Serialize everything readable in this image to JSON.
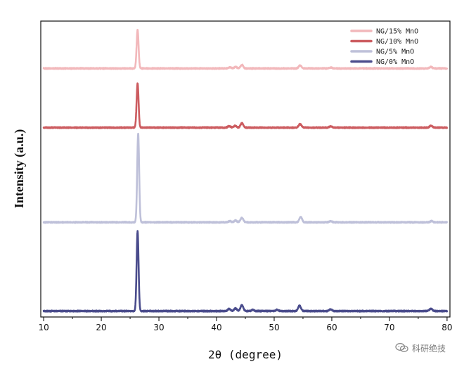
{
  "chart_data": {
    "type": "line",
    "title": "",
    "xlabel": "2θ (degree)",
    "ylabel": "Intensity (a.u.)",
    "xlim": [
      9.5,
      80.5
    ],
    "ylim": [
      0,
      1
    ],
    "xticks": [
      10,
      20,
      30,
      40,
      50,
      60,
      70,
      80
    ],
    "grid": false,
    "legend_position": "top-right",
    "series": [
      {
        "name": "NG/15% MnO",
        "color": "#f2b8bb",
        "offset": 0.84,
        "baseline_noise": 0.003,
        "peaks": [
          [
            26.3,
            0.13
          ],
          [
            42.3,
            0.004
          ],
          [
            43.3,
            0.005
          ],
          [
            44.4,
            0.012
          ],
          [
            54.5,
            0.01
          ],
          [
            59.8,
            0.003
          ],
          [
            77.2,
            0.005
          ]
        ]
      },
      {
        "name": "NG/10% MnO",
        "color": "#cc5c60",
        "offset": 0.64,
        "baseline_noise": 0.003,
        "peaks": [
          [
            26.3,
            0.15
          ],
          [
            42.2,
            0.005
          ],
          [
            43.2,
            0.006
          ],
          [
            44.4,
            0.015
          ],
          [
            54.5,
            0.012
          ],
          [
            59.8,
            0.004
          ],
          [
            77.2,
            0.006
          ]
        ]
      },
      {
        "name": "NG/5% MnO",
        "color": "#bec0d9",
        "offset": 0.32,
        "baseline_noise": 0.003,
        "peaks": [
          [
            26.4,
            0.3
          ],
          [
            42.3,
            0.004
          ],
          [
            43.3,
            0.006
          ],
          [
            44.4,
            0.015
          ],
          [
            54.6,
            0.018
          ],
          [
            59.8,
            0.004
          ],
          [
            77.3,
            0.004
          ]
        ]
      },
      {
        "name": "NG/0% MnO",
        "color": "#4a4c8c",
        "offset": 0.02,
        "baseline_noise": 0.003,
        "peaks": [
          [
            26.3,
            0.27
          ],
          [
            42.2,
            0.007
          ],
          [
            43.3,
            0.009
          ],
          [
            44.4,
            0.02
          ],
          [
            46.3,
            0.004
          ],
          [
            50.5,
            0.004
          ],
          [
            54.4,
            0.018
          ],
          [
            59.8,
            0.006
          ],
          [
            77.2,
            0.008
          ]
        ]
      }
    ]
  },
  "watermark": {
    "text": "科研绝技",
    "icon": "wechat-icon"
  }
}
